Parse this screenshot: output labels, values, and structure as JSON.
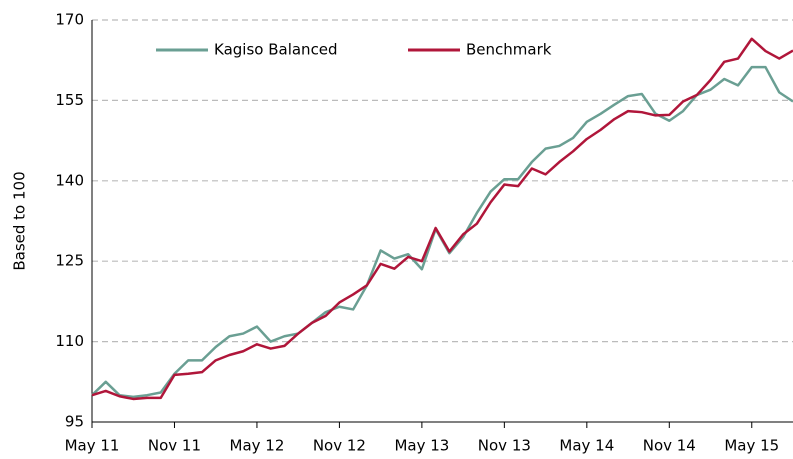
{
  "chart_data": {
    "type": "line",
    "y_label": "Based to 100",
    "categories": [
      "May 11",
      null,
      null,
      null,
      null,
      null,
      "Nov 11",
      null,
      null,
      null,
      null,
      null,
      "May 12",
      null,
      null,
      null,
      null,
      null,
      "Nov 12",
      null,
      null,
      null,
      null,
      null,
      "May 13",
      null,
      null,
      null,
      null,
      null,
      "Nov 13",
      null,
      null,
      null,
      null,
      null,
      "May 14",
      null,
      null,
      null,
      null,
      null,
      "Nov 14",
      null,
      null,
      null,
      null,
      null,
      "May 15",
      null,
      null,
      null
    ],
    "series": [
      {
        "name": "Kagiso Balanced",
        "color": "#6a9f93",
        "values": [
          100,
          102.5,
          100,
          99.7,
          100,
          100.5,
          104,
          106.5,
          106.5,
          109,
          111,
          111.5,
          112.8,
          110,
          111,
          111.5,
          113.5,
          115.5,
          116.5,
          116,
          120.5,
          127,
          125.5,
          126.3,
          123.5,
          131,
          126.5,
          129.5,
          134,
          138,
          140.3,
          140.3,
          143.5,
          146,
          146.5,
          148,
          151,
          152.5,
          154.2,
          155.8,
          156.2,
          152.5,
          151.2,
          153,
          156,
          157,
          159,
          157.8,
          161.2,
          161.2,
          156.5,
          154.8
        ]
      },
      {
        "name": "Benchmark",
        "color": "#b0163a",
        "values": [
          100,
          100.8,
          99.8,
          99.3,
          99.5,
          99.5,
          103.8,
          104,
          104.3,
          106.5,
          107.5,
          108.2,
          109.5,
          108.7,
          109.2,
          111.5,
          113.5,
          114.8,
          117.3,
          118.8,
          120.5,
          124.5,
          123.6,
          125.8,
          125,
          131.2,
          126.8,
          130,
          132,
          136,
          139.3,
          139,
          142.3,
          141.2,
          143.5,
          145.5,
          147.8,
          149.5,
          151.5,
          153,
          152.8,
          152.2,
          152.3,
          154.8,
          156,
          158.8,
          162.2,
          162.8,
          166.5,
          164.2,
          162.8,
          164.3
        ]
      }
    ],
    "ylim": [
      95,
      170
    ],
    "yticks": [
      95,
      110,
      125,
      140,
      155,
      170
    ],
    "grid": true,
    "legend": "top-left"
  }
}
